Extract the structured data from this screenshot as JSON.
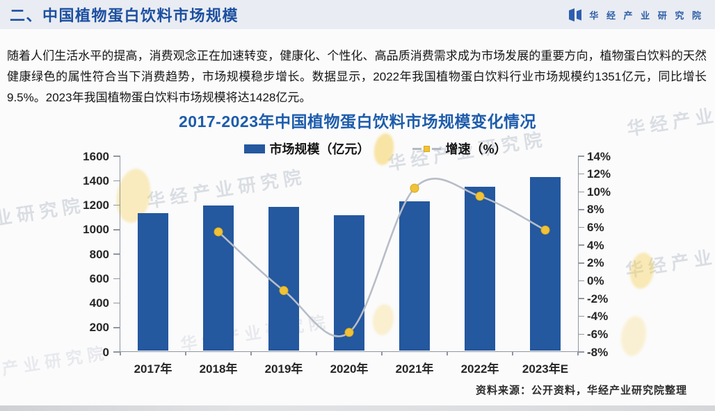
{
  "header": {
    "section_title": "二、中国植物蛋白饮料市场规模",
    "brand_name": "华 经 产 业 研 究 院"
  },
  "intro_paragraph": "随着人们生活水平的提高，消费观念正在加速转变，健康化、个性化、高品质消费需求成为市场发展的重要方向，植物蛋白饮料的天然健康绿色的属性符合当下消费趋势，市场规模稳步增长。数据显示，2022年我国植物蛋白饮料行业市场规模约1351亿元，同比增长9.5%。2023年我国植物蛋白饮料市场规模将达1428亿元。",
  "chart_data": {
    "type": "bar+line",
    "title": "2017-2023年中国植物蛋白饮料市场规模变化情况",
    "categories": [
      "2017年",
      "2018年",
      "2019年",
      "2020年",
      "2021年",
      "2022年",
      "2023年E"
    ],
    "series": [
      {
        "name": "市场规模（亿元）",
        "type": "bar",
        "axis": "left",
        "color": "#24589f",
        "values": [
          1136,
          1199,
          1186,
          1117,
          1234,
          1351,
          1428
        ]
      },
      {
        "name": "增速（%）",
        "type": "line",
        "axis": "right",
        "color": "#b7bdc7",
        "marker_color": "#f0c239",
        "values": [
          null,
          5.5,
          -1.1,
          -5.8,
          10.4,
          9.5,
          5.7
        ]
      }
    ],
    "left_axis": {
      "min": 0,
      "max": 1600,
      "step": 200,
      "ticks": [
        "0",
        "200",
        "400",
        "600",
        "800",
        "1000",
        "1200",
        "1400",
        "1600"
      ]
    },
    "right_axis": {
      "min": -8,
      "max": 14,
      "step": 2,
      "ticks": [
        "-8%",
        "-6%",
        "-4%",
        "-2%",
        "0%",
        "2%",
        "4%",
        "6%",
        "8%",
        "10%",
        "12%",
        "14%"
      ]
    },
    "legend_position": "top-center",
    "grid": false
  },
  "source_note": "资料来源：公开资料，华经产业研究院整理",
  "watermark_text": "华经产业研究院",
  "colors": {
    "header_bg": "#e9ecf2",
    "header_text": "#1c4fa0",
    "brand_blue": "#2e5fa8",
    "chart_title": "#1d5cab",
    "bar": "#24589f",
    "line": "#b7bdc7",
    "marker": "#f0c239",
    "accent_yellow": "#f6cd4c"
  }
}
